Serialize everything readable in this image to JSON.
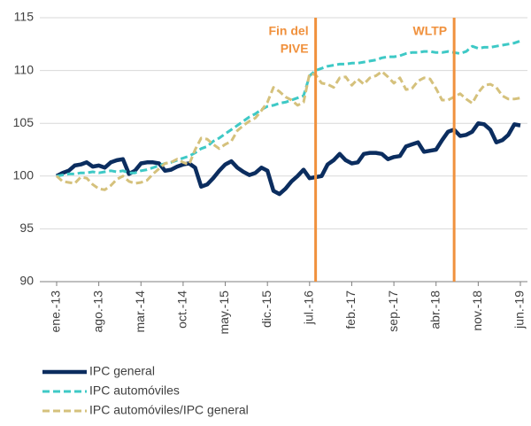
{
  "chart_data": {
    "type": "line",
    "categories": [
      "ene.-13",
      null,
      null,
      null,
      null,
      null,
      null,
      "ago.-13",
      null,
      null,
      null,
      null,
      null,
      null,
      "mar.-14",
      null,
      null,
      null,
      null,
      null,
      null,
      "oct.-14",
      null,
      null,
      null,
      null,
      null,
      null,
      "may.-15",
      null,
      null,
      null,
      null,
      null,
      null,
      "dic.-15",
      null,
      null,
      null,
      null,
      null,
      null,
      "jul.-16",
      null,
      null,
      null,
      null,
      null,
      null,
      "feb.-17",
      null,
      null,
      null,
      null,
      null,
      null,
      "sep.-17",
      null,
      null,
      null,
      null,
      null,
      null,
      "abr.-18",
      null,
      null,
      null,
      null,
      null,
      null,
      "nov.-18",
      null,
      null,
      null,
      null,
      null,
      null,
      "jun.-19"
    ],
    "series": [
      {
        "name": "IPC general",
        "color": "#0b2d5f",
        "dashed": false,
        "values": [
          100,
          100.3,
          100.5,
          101,
          101.1,
          101.3,
          100.9,
          101,
          100.8,
          101.3,
          101.5,
          101.6,
          100.2,
          100.5,
          101.2,
          101.3,
          101.3,
          101.2,
          100.5,
          100.6,
          100.9,
          101.1,
          101.2,
          100.8,
          99,
          99.2,
          99.8,
          100.5,
          101.1,
          101.4,
          100.8,
          100.4,
          100.1,
          100.3,
          100.8,
          100.5,
          98.6,
          98.3,
          98.8,
          99.5,
          100,
          100.6,
          99.8,
          99.9,
          100,
          101.1,
          101.5,
          102.1,
          101.5,
          101.2,
          101.3,
          102.1,
          102.2,
          102.2,
          102.1,
          101.6,
          101.8,
          101.9,
          102.8,
          103,
          103.2,
          102.3,
          102.4,
          102.5,
          103.4,
          104.2,
          104.4,
          103.8,
          103.9,
          104.2,
          105,
          104.9,
          104.4,
          103.2,
          103.4,
          103.9,
          104.9,
          104.8
        ]
      },
      {
        "name": "IPC automóviles",
        "color": "#3ec9c6",
        "dashed": true,
        "values": [
          100,
          100.1,
          100.2,
          100.2,
          100.3,
          100.3,
          100.4,
          100.3,
          100.4,
          100.5,
          100.4,
          100.5,
          100.3,
          100.3,
          100.5,
          100.6,
          100.8,
          101,
          101.2,
          101.3,
          101.5,
          101.7,
          101.9,
          102.2,
          102.6,
          102.8,
          103.3,
          103.6,
          104,
          104.4,
          104.8,
          105.2,
          105.6,
          105.9,
          106.3,
          106.6,
          106.7,
          106.9,
          107,
          107.2,
          107.4,
          107.6,
          109.5,
          110,
          110.2,
          110.4,
          110.5,
          110.6,
          110.6,
          110.7,
          110.7,
          110.8,
          110.9,
          111,
          111.2,
          111.3,
          111.3,
          111.4,
          111.6,
          111.7,
          111.7,
          111.8,
          111.8,
          111.7,
          111.7,
          111.8,
          111.7,
          111.6,
          111.8,
          112.3,
          112.1,
          112.2,
          112.2,
          112.3,
          112.4,
          112.5,
          112.6,
          112.8
        ]
      },
      {
        "name": "IPC automóviles/IPC general",
        "color": "#d5c17c",
        "dashed": true,
        "values": [
          100,
          99.5,
          99.4,
          99.3,
          99.9,
          99.8,
          99.2,
          98.8,
          98.7,
          99.1,
          99.7,
          100,
          99.5,
          99.3,
          99.4,
          99.6,
          100.2,
          100.7,
          101.2,
          101.3,
          101.6,
          101.3,
          101.1,
          102.5,
          103.6,
          103.5,
          103,
          102.6,
          103,
          103.3,
          104.3,
          104.8,
          105.2,
          105.5,
          106.2,
          107,
          108.4,
          108,
          107.5,
          107.2,
          106.7,
          107,
          109.7,
          109.6,
          108.8,
          108.7,
          108.4,
          109.3,
          109.4,
          108.6,
          109.2,
          108.7,
          109.3,
          109.5,
          109.9,
          109.4,
          108.8,
          109.3,
          108.2,
          108.3,
          109,
          109.3,
          109.2,
          108.3,
          107.2,
          107.2,
          107.5,
          107.8,
          107.3,
          106.9,
          107.9,
          108.6,
          108.7,
          108.4,
          107.6,
          107.3,
          107.3,
          107.4
        ]
      }
    ],
    "ylim": [
      90,
      115
    ],
    "yticks": [
      90,
      95,
      100,
      105,
      110,
      115
    ],
    "grid": true,
    "annotations": [
      {
        "lines": [
          "Fin del",
          "PIVE"
        ],
        "x": 43,
        "color": "#f0913d"
      },
      {
        "lines": [
          "WLTP"
        ],
        "x": 66,
        "color": "#f0913d"
      }
    ]
  }
}
